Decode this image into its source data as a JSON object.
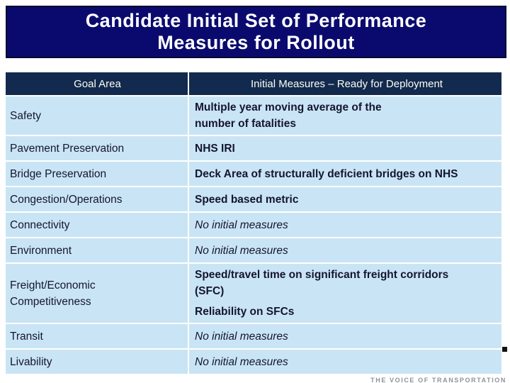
{
  "slide": {
    "title": {
      "line1": "Candidate Initial Set of Performance",
      "line2": "Measures for Rollout"
    }
  },
  "table": {
    "headers": [
      "Goal Area",
      "Initial Measures – Ready for Deployment"
    ],
    "rows": [
      {
        "goal_lines": [
          "Safety"
        ],
        "style": "bold",
        "measure_lines": [
          {
            "text": "Multiple year moving average of the"
          },
          {
            "text": "number of fatalities"
          }
        ]
      },
      {
        "goal_lines": [
          "Pavement Preservation"
        ],
        "style": "bold",
        "measure_lines": [
          {
            "text": "NHS IRI"
          }
        ]
      },
      {
        "goal_lines": [
          "Bridge Preservation"
        ],
        "style": "bold",
        "measure_lines": [
          {
            "text": "Deck Area of structurally deficient bridges on NHS"
          }
        ]
      },
      {
        "goal_lines": [
          "Congestion/Operations"
        ],
        "style": "bold",
        "measure_lines": [
          {
            "text": "Speed based metric"
          }
        ]
      },
      {
        "goal_lines": [
          "Connectivity"
        ],
        "style": "italic",
        "measure_lines": [
          {
            "text": "No initial measures"
          }
        ]
      },
      {
        "goal_lines": [
          "Environment"
        ],
        "style": "italic",
        "measure_lines": [
          {
            "text": "No initial measures"
          }
        ]
      },
      {
        "goal_lines": [
          "Freight/Economic",
          "Competitiveness"
        ],
        "style": "bold",
        "measure_lines": [
          {
            "text": "Speed/travel time on significant freight corridors"
          },
          {
            "text": "(SFC)"
          },
          {
            "text": "Reliability on SFCs",
            "gap_above": true
          }
        ]
      },
      {
        "goal_lines": [
          "Transit"
        ],
        "style": "italic",
        "measure_lines": [
          {
            "text": "No initial measures"
          }
        ]
      },
      {
        "goal_lines": [
          "Livability"
        ],
        "style": "italic",
        "measure_lines": [
          {
            "text": "No initial measures"
          }
        ]
      }
    ]
  },
  "footer": {
    "tagline": "THE VOICE OF TRANSPORTATION"
  },
  "colors": {
    "title_bg": "#0a0a6e",
    "title_border": "#03032e",
    "header_bg": "#122a4d",
    "row_bg": "#c9e5f5",
    "body_text": "#15152e",
    "header_text": "#fdfdf5",
    "separator": "#ffffff",
    "tagline_text": "#8d939b",
    "marker": "#111111"
  }
}
